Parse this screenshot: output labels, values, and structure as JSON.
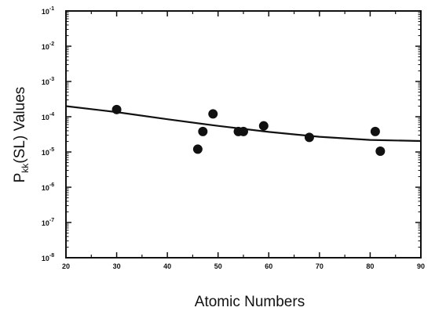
{
  "chart_data": {
    "type": "scatter",
    "xlabel": "Atomic Numbers",
    "ylabel": {
      "prefix": "P",
      "subscript": "kk",
      "suffix": "(SL) Values"
    },
    "xlim": [
      20,
      90
    ],
    "ylim_exponent": [
      -8,
      -1
    ],
    "yscale": "log",
    "grid": false,
    "legend": "none",
    "x_ticks": [
      20,
      30,
      40,
      50,
      60,
      70,
      80,
      90
    ],
    "x_tick_labels": [
      "20",
      "30",
      "40",
      "50",
      "60",
      "70",
      "80",
      "90"
    ],
    "y_ticks": [
      {
        "exponent": -8,
        "base": "10",
        "exp_label": "-8"
      },
      {
        "exponent": -7,
        "base": "10",
        "exp_label": "-7"
      },
      {
        "exponent": -6,
        "base": "10",
        "exp_label": "-6"
      },
      {
        "exponent": -5,
        "base": "10",
        "exp_label": "-5"
      },
      {
        "exponent": -4,
        "base": "10",
        "exp_label": "-4"
      },
      {
        "exponent": -3,
        "base": "10",
        "exp_label": "-3"
      },
      {
        "exponent": -2,
        "base": "10",
        "exp_label": "-2"
      },
      {
        "exponent": -1,
        "base": "10",
        "exp_label": "-1"
      }
    ],
    "series": [
      {
        "type": "scatter",
        "points": [
          {
            "x": 30,
            "y": 0.00016
          },
          {
            "x": 46,
            "y": 1.2e-05
          },
          {
            "x": 47,
            "y": 3.8e-05
          },
          {
            "x": 49,
            "y": 0.00012
          },
          {
            "x": 54,
            "y": 3.8e-05
          },
          {
            "x": 55,
            "y": 3.8e-05
          },
          {
            "x": 59,
            "y": 5.5e-05
          },
          {
            "x": 68,
            "y": 2.6e-05
          },
          {
            "x": 81,
            "y": 3.8e-05
          },
          {
            "x": 82,
            "y": 1.05e-05
          }
        ]
      },
      {
        "type": "line",
        "points": [
          {
            "x": 20,
            "y": 0.0002
          },
          {
            "x": 30,
            "y": 0.000135
          },
          {
            "x": 40,
            "y": 8.5e-05
          },
          {
            "x": 50,
            "y": 5.5e-05
          },
          {
            "x": 60,
            "y": 3.7e-05
          },
          {
            "x": 70,
            "y": 2.7e-05
          },
          {
            "x": 80,
            "y": 2.2e-05
          },
          {
            "x": 90,
            "y": 2.05e-05
          }
        ]
      }
    ],
    "colors": {
      "marker": "#111111",
      "line": "#111111",
      "axis": "#111111"
    }
  }
}
